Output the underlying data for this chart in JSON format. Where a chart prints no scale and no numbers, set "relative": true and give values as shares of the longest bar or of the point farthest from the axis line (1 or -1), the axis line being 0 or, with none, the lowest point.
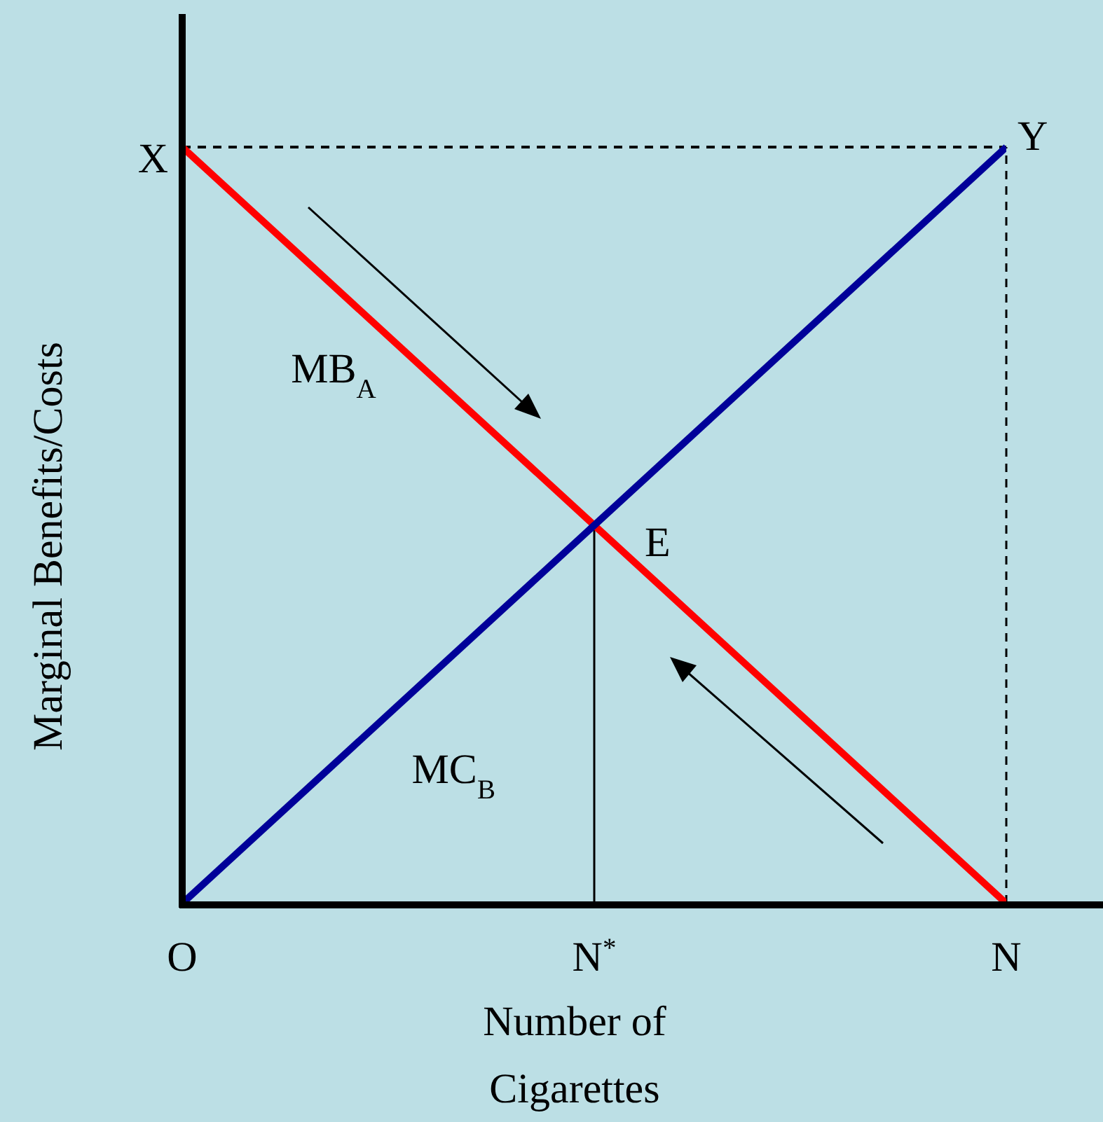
{
  "chart_data": {
    "type": "line",
    "relative": true,
    "ylabel": "Marginal Benefits/Costs",
    "xlabel": "Number of Cigarettes",
    "categories": [
      "O",
      "N$^{*}$",
      "N"
    ],
    "series": [
      {
        "name": "MB$_{A}$",
        "color": "#ff0000",
        "values": [
          1,
          0.5,
          0
        ]
      },
      {
        "name": "MC$_{B}$",
        "color": "#000099",
        "values": [
          0,
          0.5,
          1
        ]
      }
    ],
    "annotations": [
      {
        "text": "X",
        "x": "O",
        "y": 1
      },
      {
        "text": "Y",
        "x": "N",
        "y": 1
      },
      {
        "text": "E",
        "x": "N$^{*}$",
        "y": 0.5
      }
    ],
    "ref_lines": [
      {
        "axis": "y",
        "value": 1,
        "line_style": "dashed",
        "color": "#000000"
      },
      {
        "axis": "x",
        "value": "N",
        "line_style": "dashed",
        "color": "#000000"
      },
      {
        "axis": "x",
        "value": "N$^{*}$",
        "line_style": "solid",
        "color": "#000000"
      }
    ],
    "legend": false,
    "grid": false,
    "marker": "none",
    "line_style": "solid"
  }
}
